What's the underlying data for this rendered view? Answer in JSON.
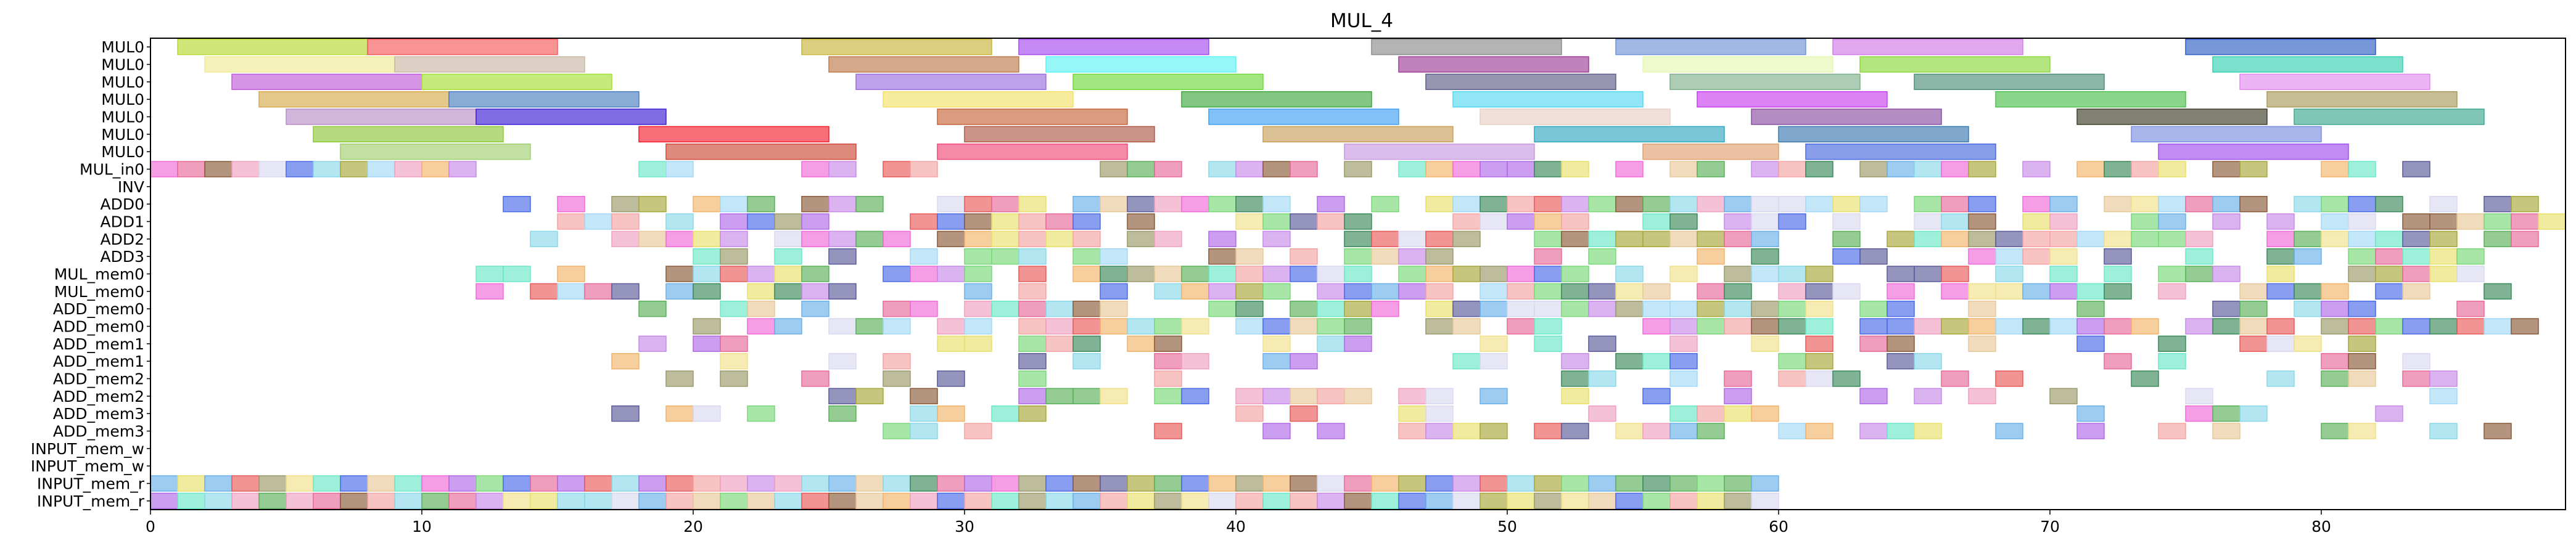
{
  "chart_data": {
    "type": "gantt",
    "title": "MUL_4",
    "xlabel": "",
    "ylabel": "",
    "xlim": [
      0,
      89
    ],
    "xticks": [
      0,
      10,
      20,
      30,
      40,
      50,
      60,
      70,
      80
    ],
    "grid": false,
    "legend": "none",
    "rows": [
      "MUL0",
      "MUL0",
      "MUL0",
      "MUL0",
      "MUL0",
      "MUL0",
      "MUL0",
      "MUL_in0",
      "INV",
      "ADD0",
      "ADD1",
      "ADD2",
      "ADD3",
      "MUL_mem0",
      "MUL_mem0",
      "ADD_mem0",
      "ADD_mem0",
      "ADD_mem1",
      "ADD_mem1",
      "ADD_mem2",
      "ADD_mem2",
      "ADD_mem3",
      "ADD_mem3",
      "INPUT_mem_w",
      "INPUT_mem_w",
      "INPUT_mem_r",
      "INPUT_mem_r"
    ],
    "long_tasks": [
      [
        1,
        8,
        "#b8d92f"
      ],
      [
        8,
        15,
        "#f55a5a"
      ],
      [
        24,
        31,
        "#c8b53a"
      ],
      [
        32,
        39,
        "#a64bf0"
      ],
      [
        45,
        52,
        "#8c8c8c"
      ],
      [
        54,
        61,
        "#6f92d6"
      ],
      [
        62,
        69,
        "#d17ae8"
      ],
      [
        75,
        82,
        "#2f5fc4"
      ],
      [
        2,
        9,
        "#eeea95"
      ],
      [
        9,
        16,
        "#c9b9a5"
      ],
      [
        25,
        32,
        "#bf7a4c"
      ],
      [
        33,
        40,
        "#5cf2f2"
      ],
      [
        46,
        53,
        "#a03d96"
      ],
      [
        55,
        62,
        "#e6f7b0"
      ],
      [
        63,
        70,
        "#8cd93b"
      ],
      [
        76,
        83,
        "#36d1b0"
      ],
      [
        3,
        10,
        "#c15ad8"
      ],
      [
        10,
        17,
        "#a4e036"
      ],
      [
        26,
        33,
        "#9a6ee0"
      ],
      [
        34,
        41,
        "#6fd83a"
      ],
      [
        47,
        54,
        "#5e5e8a"
      ],
      [
        56,
        63,
        "#7fb08a"
      ],
      [
        65,
        72,
        "#4f8f7a"
      ],
      [
        77,
        84,
        "#e28af0"
      ],
      [
        4,
        11,
        "#d6aa4d"
      ],
      [
        11,
        18,
        "#4d7ec2"
      ],
      [
        27,
        34,
        "#f2e06a"
      ],
      [
        38,
        45,
        "#3fa83f"
      ],
      [
        48,
        55,
        "#55d8f0"
      ],
      [
        57,
        64,
        "#c83ff0"
      ],
      [
        68,
        75,
        "#4fc04f"
      ],
      [
        78,
        85,
        "#a89a5a"
      ],
      [
        5,
        12,
        "#b88ec8"
      ],
      [
        12,
        19,
        "#3e1fd4"
      ],
      [
        29,
        36,
        "#c8653a"
      ],
      [
        39,
        46,
        "#3fa0f2"
      ],
      [
        49,
        56,
        "#e8cfc4"
      ],
      [
        59,
        66,
        "#8a4fa0"
      ],
      [
        71,
        78,
        "#3f3f2a"
      ],
      [
        79,
        86,
        "#3fa890"
      ],
      [
        6,
        13,
        "#8fc83a"
      ],
      [
        18,
        25,
        "#f21f2f"
      ],
      [
        30,
        37,
        "#b05a4a"
      ],
      [
        41,
        48,
        "#c8a05a"
      ],
      [
        51,
        58,
        "#2fa8c0"
      ],
      [
        60,
        67,
        "#3a7ab0"
      ],
      [
        73,
        80,
        "#7a8fe0"
      ],
      [
        7,
        14,
        "#9fd070"
      ],
      [
        19,
        26,
        "#d04a3a"
      ],
      [
        29,
        36,
        "#f04a7a"
      ],
      [
        44,
        51,
        "#c89ae0"
      ],
      [
        55,
        60,
        "#e0a070"
      ],
      [
        61,
        68,
        "#4a6ae0"
      ],
      [
        74,
        81,
        "#a050f0"
      ]
    ]
  }
}
